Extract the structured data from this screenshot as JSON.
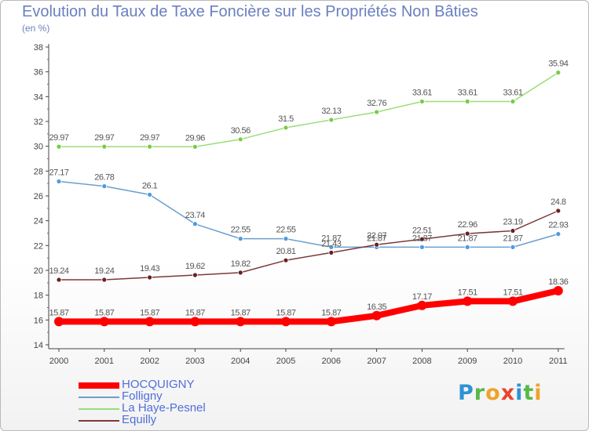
{
  "page": {
    "title": "Evolution du Taux de Taxe Foncière sur les Propriétés Non Bâties",
    "unit": "(en %)"
  },
  "logo": {
    "text": "Proxiti"
  },
  "chart_data": {
    "type": "line",
    "title": "Evolution du Taux de Taxe Foncière sur les Propriétés Non Bâties",
    "ylabel": "(en %)",
    "xlabel": "",
    "ylim": [
      14,
      38
    ],
    "yticks": [
      14,
      16,
      18,
      20,
      22,
      24,
      26,
      28,
      30,
      32,
      34,
      36,
      38
    ],
    "grid": false,
    "legend_position": "bottom-left",
    "categories": [
      "2000",
      "2001",
      "2002",
      "2003",
      "2004",
      "2005",
      "2006",
      "2007",
      "2008",
      "2009",
      "2010",
      "2011"
    ],
    "series": [
      {
        "name": "HOCQUIGNY",
        "color": "#ff0000",
        "marker": "#ff0000",
        "width": 8,
        "values": [
          15.87,
          15.87,
          15.87,
          15.87,
          15.87,
          15.87,
          15.87,
          16.35,
          17.17,
          17.51,
          17.51,
          18.36
        ],
        "labels": [
          "15.87",
          "15.87",
          "15.87",
          "15.87",
          "15.87",
          "15.87",
          "15.87",
          "16.35",
          "17.17",
          "17.51",
          "17.51",
          "18.36"
        ]
      },
      {
        "name": "Folligny",
        "color": "#6a9fcf",
        "marker": "#4d9be0",
        "width": 1.5,
        "values": [
          27.17,
          26.78,
          26.1,
          23.74,
          22.55,
          22.55,
          21.87,
          21.87,
          21.87,
          21.87,
          21.87,
          22.93
        ],
        "labels": [
          "27.17",
          "26.78",
          "26.1",
          "23.74",
          "22.55",
          "22.55",
          "21.87",
          "21.87",
          "21.87",
          "21.87",
          "21.87",
          "22.93"
        ]
      },
      {
        "name": "La Haye-Pesnel",
        "color": "#99dd77",
        "marker": "#77cc44",
        "width": 1.5,
        "values": [
          29.97,
          29.97,
          29.97,
          29.96,
          30.56,
          31.5,
          32.13,
          32.76,
          33.61,
          33.61,
          33.61,
          35.94
        ],
        "labels": [
          "29.97",
          "29.97",
          "29.97",
          "29.96",
          "30.56",
          "31.5",
          "32.13",
          "32.76",
          "33.61",
          "33.61",
          "33.61",
          "35.94"
        ]
      },
      {
        "name": "Equilly",
        "color": "#7a3a3a",
        "marker": "#6a1f1f",
        "width": 1.5,
        "values": [
          19.24,
          19.24,
          19.43,
          19.62,
          19.82,
          20.81,
          21.43,
          22.07,
          22.51,
          22.96,
          23.19,
          24.8
        ],
        "labels": [
          "19.24",
          "19.24",
          "19.43",
          "19.62",
          "19.82",
          "20.81",
          "21.43",
          "22.07",
          "22.51",
          "22.96",
          "23.19",
          "24.8"
        ]
      }
    ]
  }
}
